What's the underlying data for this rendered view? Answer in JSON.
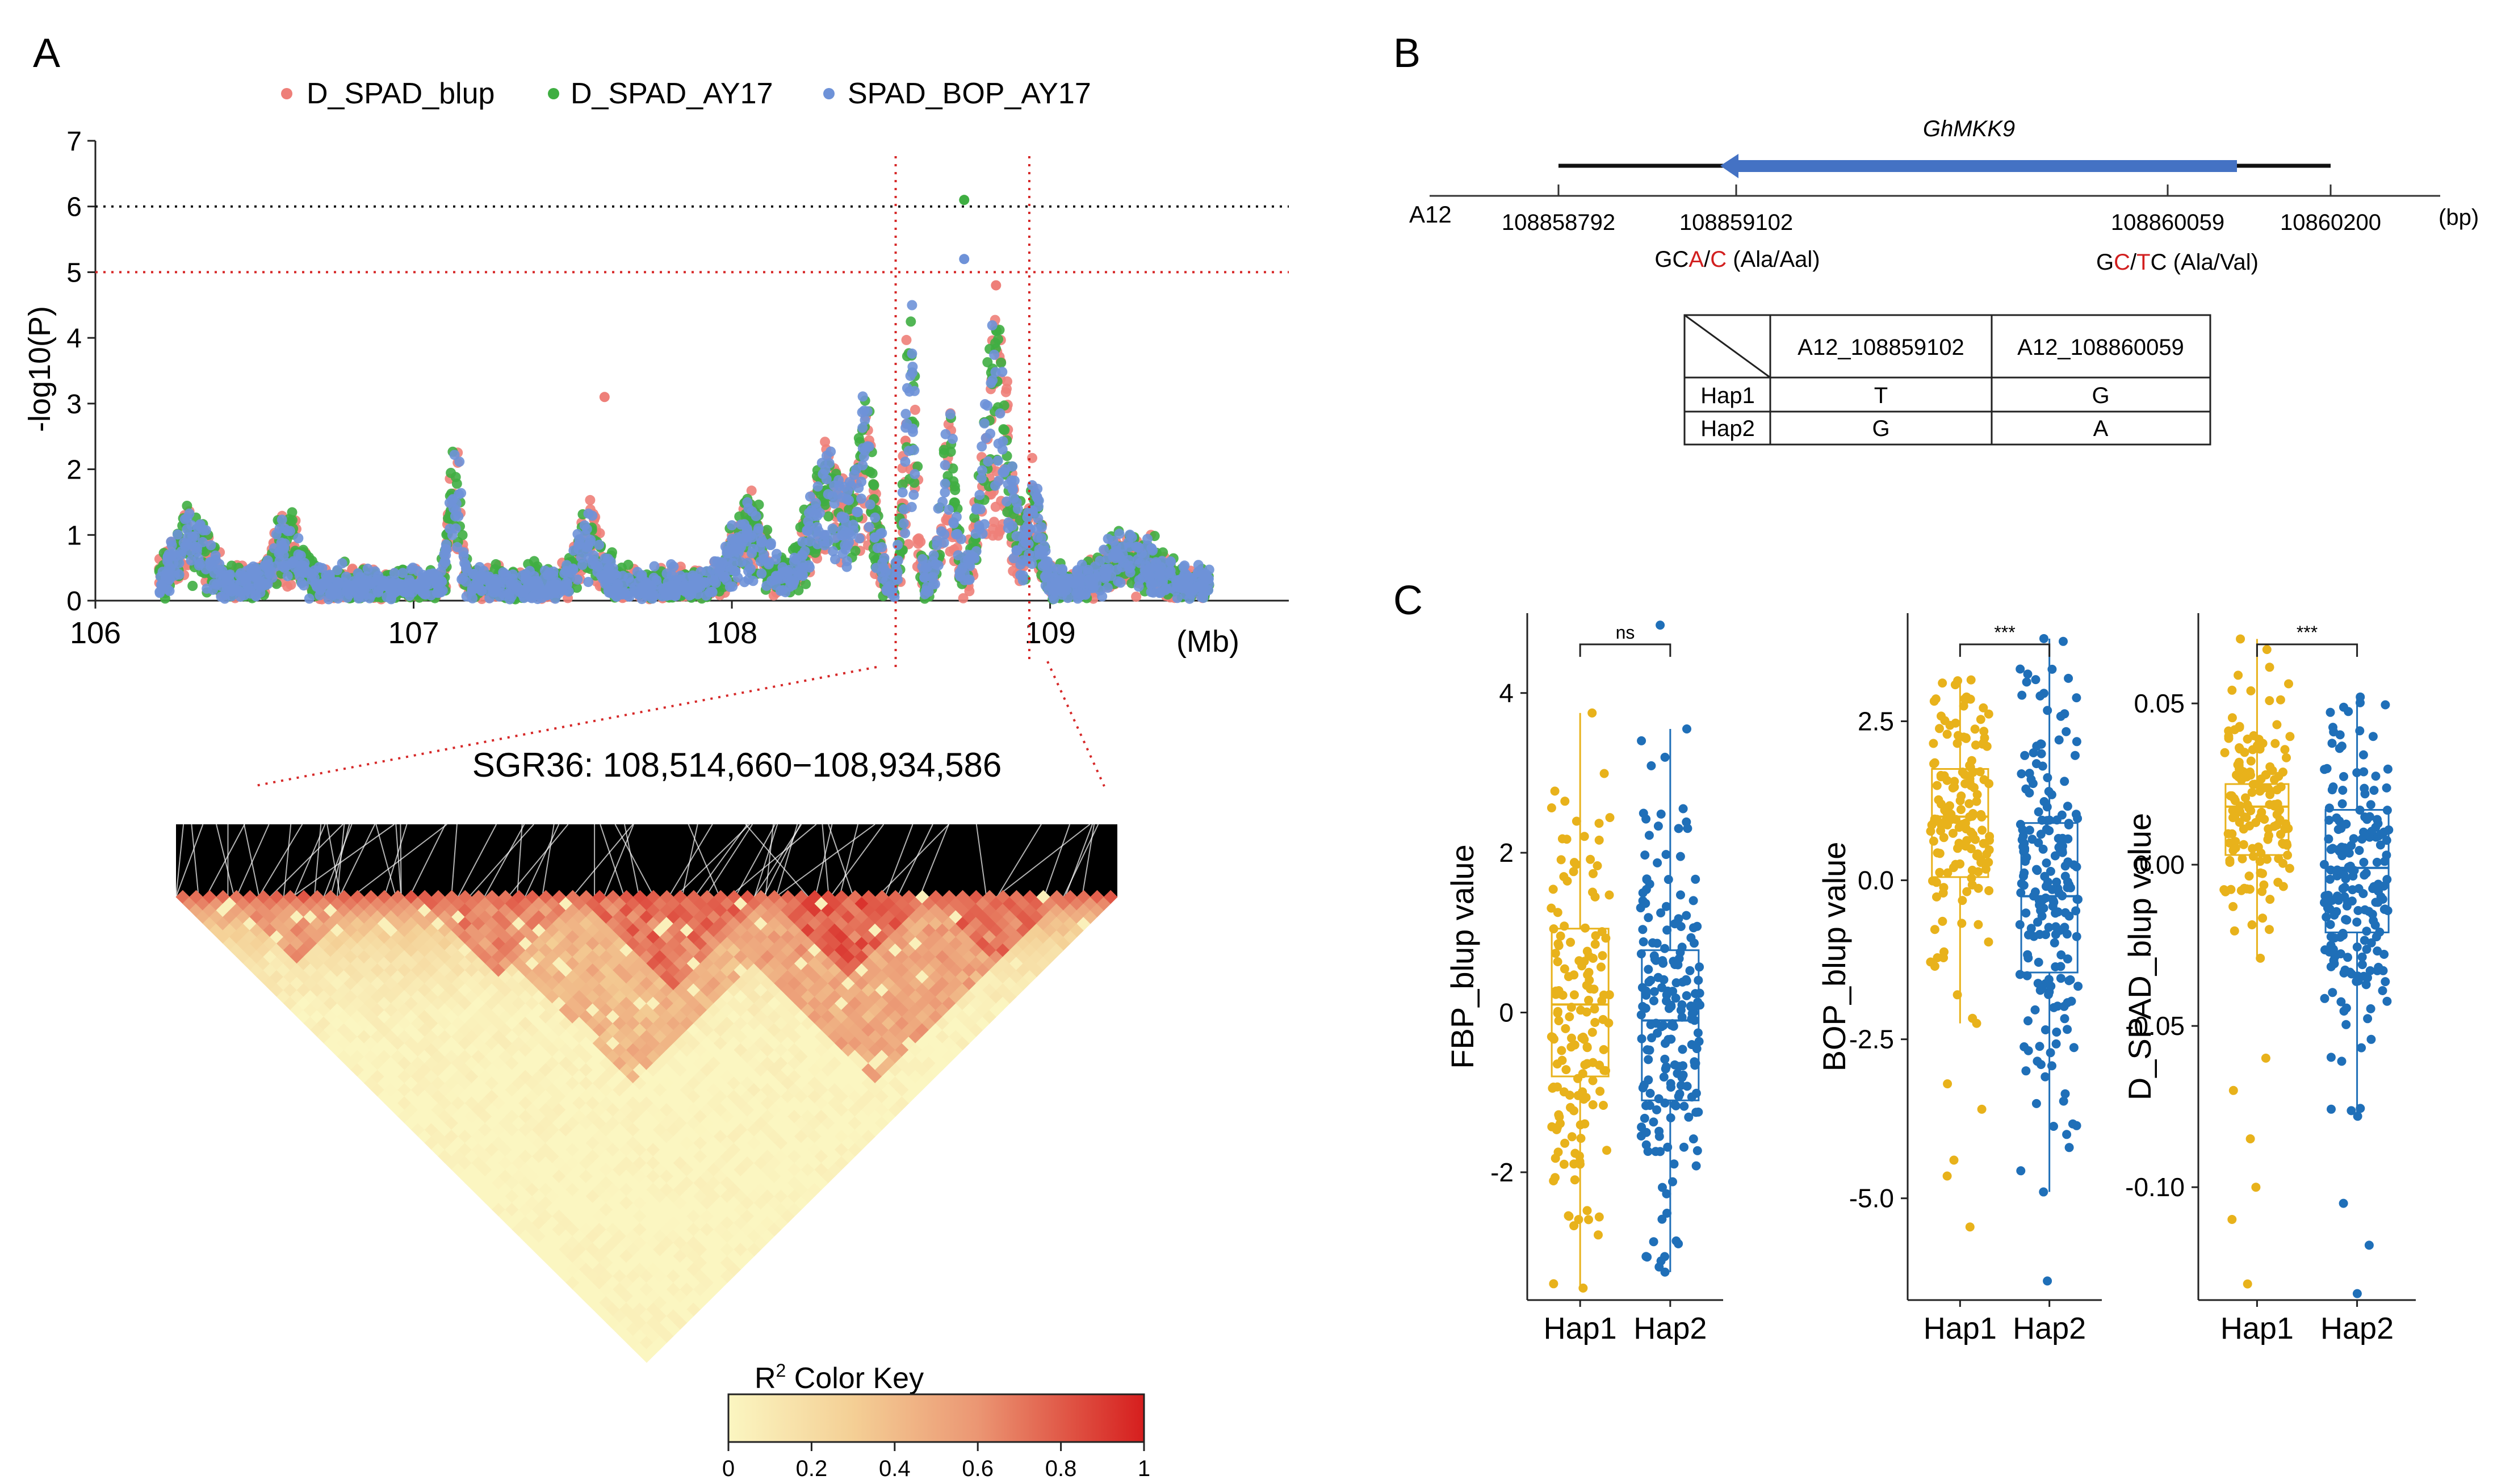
{
  "panels": {
    "a": "A",
    "b": "B",
    "c": "C"
  },
  "colors": {
    "blup": "#ee7f79",
    "ay17": "#3fae42",
    "bop": "#6e92d8",
    "hap1": "#e8b21b",
    "hap2": "#1f6fb8",
    "gene": "#4472c4",
    "threshold_red": "#d62828",
    "snp_red": "#d21f1f"
  },
  "manhattan": {
    "legend": [
      "D_SPAD_blup",
      "D_SPAD_AY17",
      "SPAD_BOP_AY17"
    ],
    "ylabel": "-log10(P)",
    "xunit": "(Mb)",
    "ytick_labels": [
      "0",
      "1",
      "2",
      "3",
      "4",
      "5",
      "6",
      "7"
    ],
    "xtick_labels": [
      "106",
      "107",
      "108",
      "109"
    ]
  },
  "ld": {
    "title": "SGR36: 108,514,660−108,934,586",
    "key_title": "Color Key",
    "key_r": "R",
    "key_sup": "2",
    "key_ticks": [
      "0",
      "0.2",
      "0.4",
      "0.6",
      "0.8",
      "1"
    ]
  },
  "gene": {
    "name": "GhMKK9",
    "chrom": "A12",
    "unit": "(bp)",
    "positions": [
      "108858792",
      "108859102",
      "108860059",
      "10860200"
    ],
    "snp1": {
      "pre": "GC",
      "a1": "A",
      "sep": "/",
      "a2": "C",
      "post": " (Ala/Aal)"
    },
    "snp2": {
      "pre": "G",
      "a1": "C",
      "sep": "/",
      "a2": "T",
      "post": "C (Ala/Val)"
    }
  },
  "hap_table": {
    "headers": [
      "A12_108859102",
      "A12_108860059"
    ],
    "rows": [
      {
        "name": "Hap1",
        "cells": [
          "T",
          "G"
        ]
      },
      {
        "name": "Hap2",
        "cells": [
          "G",
          "A"
        ]
      }
    ]
  },
  "chart_data": [
    {
      "type": "scatter",
      "title": "",
      "xlabel": "(Mb)",
      "ylabel": "-log10(P)",
      "xlim": [
        106.0,
        109.75
      ],
      "ylim": [
        0,
        7
      ],
      "hlines": [
        {
          "y": 6,
          "color": "black",
          "style": "dotted"
        },
        {
          "y": 5,
          "color": "red",
          "style": "dotted"
        }
      ],
      "vlines": [
        108.51466,
        108.934586
      ],
      "series": [
        {
          "name": "D_SPAD_blup",
          "peak_x": 108.83,
          "peak_y": 4.8,
          "max_other": 3.1
        },
        {
          "name": "D_SPAD_AY17",
          "peak_x": 108.73,
          "peak_y": 6.1
        },
        {
          "name": "SPAD_BOP_AY17",
          "peak_x": 108.73,
          "peak_y": 5.2
        }
      ]
    },
    {
      "type": "heatmap",
      "title": "SGR36: 108,514,660−108,934,586",
      "legend_title": "R2 Color Key",
      "color_range": [
        0,
        1
      ],
      "colors": [
        "#fbf6c1",
        "#d61e1e"
      ]
    },
    {
      "type": "box",
      "ylabel": "FBP_blup value",
      "categories": [
        "Hap1",
        "Hap2"
      ],
      "significance": "ns",
      "ylim": [
        -3.6,
        5.0
      ],
      "yticks": [
        -2,
        0,
        2,
        4
      ],
      "series": [
        {
          "name": "Hap1",
          "q1": -0.8,
          "median": 0.1,
          "q3": 1.05,
          "whisker_low": -3.45,
          "whisker_high": 3.75,
          "n": 150
        },
        {
          "name": "Hap2",
          "q1": -1.1,
          "median": -0.1,
          "q3": 0.78,
          "whisker_low": -3.25,
          "whisker_high": 3.55,
          "n": 190,
          "outliers": [
            4.85
          ]
        }
      ]
    },
    {
      "type": "box",
      "ylabel": "BOP_blup value",
      "categories": [
        "Hap1",
        "Hap2"
      ],
      "significance": "***",
      "ylim": [
        -6.6,
        4.2
      ],
      "yticks": [
        -5.0,
        -2.5,
        0.0,
        2.5
      ],
      "series": [
        {
          "name": "Hap1",
          "q1": 0.05,
          "median": 1.0,
          "q3": 1.75,
          "whisker_low": -2.25,
          "whisker_high": 3.15,
          "n": 150,
          "outliers": [
            -5.45,
            -4.65,
            -4.4,
            -3.6,
            -3.2
          ]
        },
        {
          "name": "Hap2",
          "q1": -1.45,
          "median": -0.25,
          "q3": 0.9,
          "whisker_low": -4.9,
          "whisker_high": 3.8,
          "n": 190,
          "outliers": [
            -6.3
          ]
        }
      ]
    },
    {
      "type": "box",
      "ylabel": "D_SPAD_blup value",
      "categories": [
        "Hap1",
        "Hap2"
      ],
      "significance": "***",
      "ylim": [
        -0.135,
        0.078
      ],
      "yticks": [
        -0.1,
        -0.05,
        0.0,
        0.05
      ],
      "series": [
        {
          "name": "Hap1",
          "q1": 0.003,
          "median": 0.018,
          "q3": 0.025,
          "whisker_low": -0.029,
          "whisker_high": 0.07,
          "n": 150,
          "outliers": [
            -0.06,
            -0.07,
            -0.085,
            -0.1,
            -0.11,
            -0.13
          ]
        },
        {
          "name": "Hap2",
          "q1": -0.021,
          "median": -0.001,
          "q3": 0.017,
          "whisker_low": -0.078,
          "whisker_high": 0.052,
          "n": 190,
          "outliers": [
            -0.105,
            -0.118,
            -0.133
          ]
        }
      ]
    }
  ],
  "box_tick_formats": {
    "fbp": [
      "-2",
      "0",
      "2",
      "4"
    ],
    "bop": [
      "-5.0",
      "-2.5",
      "0.0",
      "2.5"
    ],
    "dspad": [
      "-0.10",
      "-0.05",
      "0.00",
      "0.05"
    ]
  }
}
